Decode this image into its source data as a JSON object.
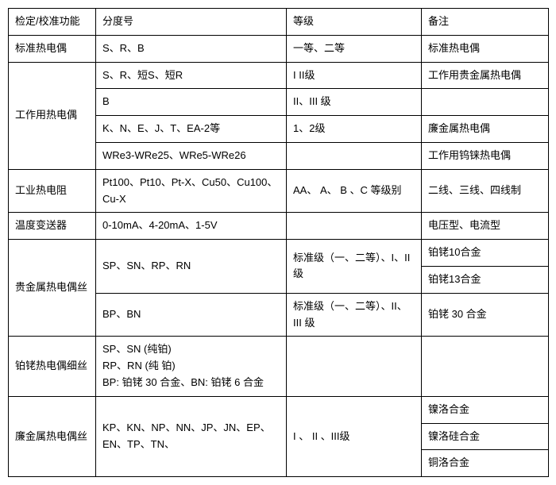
{
  "headers": {
    "col1": "检定/校准功能",
    "col2": "分度号",
    "col3": "等级",
    "col4": "备注"
  },
  "rows": {
    "r1": {
      "c1": "标准热电偶",
      "c2": "S、R、B",
      "c3": "一等、二等",
      "c4": "标准热电偶"
    },
    "r2": {
      "c1": "工作用热电偶",
      "c2": "S、R、短S、短R",
      "c3": "I   II级",
      "c4": "工作用贵金属热电偶"
    },
    "r3": {
      "c2": "B",
      "c3": "II、III 级",
      "c4": ""
    },
    "r4": {
      "c2": "K、N、E、J、T、EA-2等",
      "c3": "1、2级",
      "c4": "廉金属热电偶"
    },
    "r5": {
      "c2": "WRe3-WRe25、WRe5-WRe26",
      "c3": "",
      "c4": "工作用钨铼热电偶"
    },
    "r6": {
      "c1": "工业热电阻",
      "c2": "Pt100、Pt10、Pt-X、Cu50、Cu100、Cu-X",
      "c3": "AA、 A、 B 、C 等级别",
      "c4": "二线、三线、四线制"
    },
    "r7": {
      "c1": "温度变送器",
      "c2": "0-10mA、4-20mA、1-5V",
      "c3": "",
      "c4": "电压型、电流型"
    },
    "r8": {
      "c1": "贵金属热电偶丝",
      "c2": "SP、SN、RP、RN",
      "c3": "标准级（一、二等）、I、II级",
      "c4a": "铂铑10合金",
      "c4b": "铂铑13合金"
    },
    "r9": {
      "c2": "BP、BN",
      "c3": "标准级（一、二等）、II、 III 级",
      "c4": "铂铑 30 合金"
    },
    "r10": {
      "c1": "铂铑热电偶细丝",
      "c2": "SP、SN (纯铂)\nRP、RN (纯 铂)\nBP: 铂铑 30 合金、BN: 铂铑 6 合金",
      "c3": "",
      "c4": ""
    },
    "r11": {
      "c1": "廉金属热电偶丝",
      "c2": "KP、KN、NP、NN、JP、JN、EP、EN、TP、TN、",
      "c3": "I 、 II 、III级",
      "c4a": "镍洛合金",
      "c4b": "镍洛硅合金",
      "c4c": "铜洛合金"
    }
  }
}
